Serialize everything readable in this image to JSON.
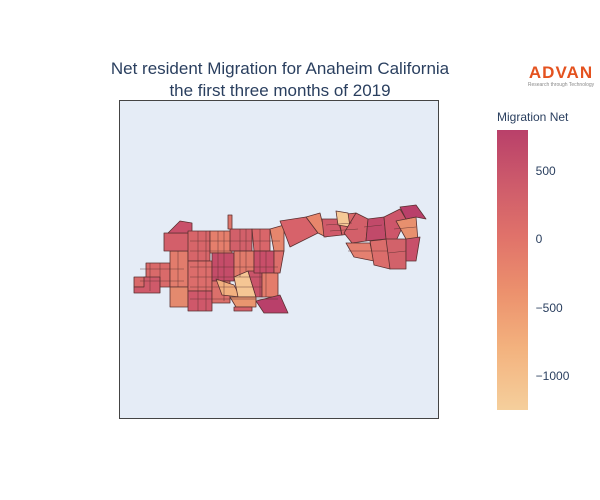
{
  "title": {
    "line1": "Net resident Migration for Anaheim California",
    "line2": "the first three months of 2019"
  },
  "logo": {
    "word": "ADVAN",
    "tagline": "Research through Technology"
  },
  "colorbar": {
    "title": "Migration Net",
    "range": [
      -1250,
      800
    ],
    "ticks": [
      {
        "value": 500,
        "label": "500"
      },
      {
        "value": 0,
        "label": "0"
      },
      {
        "value": -500,
        "label": "−500"
      },
      {
        "value": -1000,
        "label": "−1000"
      }
    ],
    "colorscale": [
      "#f5cf9c",
      "#f3b27e",
      "#ec916d",
      "#e0726a",
      "#ce5c6b",
      "#b9406a"
    ]
  },
  "map": {
    "type": "choropleth",
    "region": "Anaheim, California",
    "background": "#e5ecf6",
    "border_color": "#5a3030"
  }
}
